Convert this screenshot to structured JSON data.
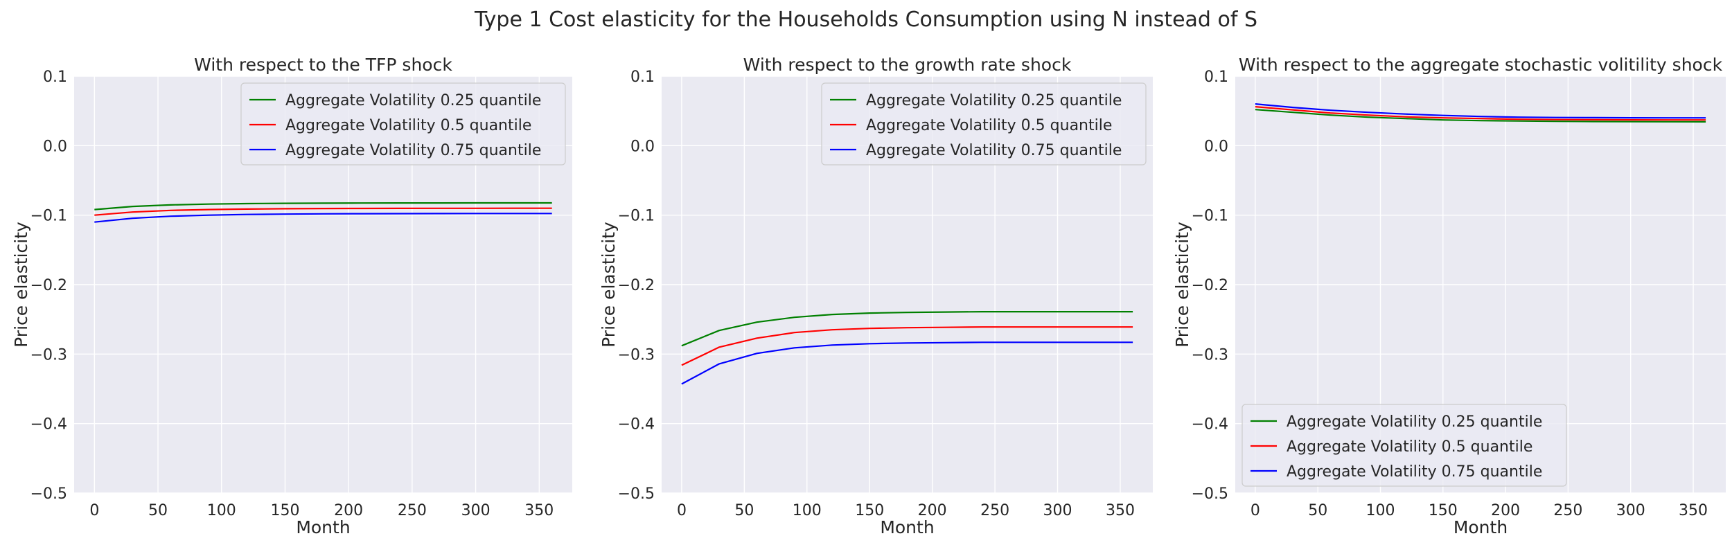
{
  "figure": {
    "title": "Type 1 Cost elasticity for the Households Consumption using N instead of S"
  },
  "colors": {
    "axes_background": "#EAEAF2",
    "grid": "#FFFFFF",
    "text": "#262626",
    "series": [
      "#008000",
      "#FF0000",
      "#0000FF"
    ]
  },
  "chart_data": [
    {
      "type": "line",
      "title": "With respect to the TFP shock",
      "xlabel": "Month",
      "ylabel": "Price elasticity",
      "xlim": [
        -16,
        376
      ],
      "ylim": [
        -0.5,
        0.1
      ],
      "xticks": [
        0,
        50,
        100,
        150,
        200,
        250,
        300,
        350
      ],
      "yticks": [
        -0.5,
        -0.4,
        -0.3,
        -0.2,
        -0.1,
        0.0,
        0.1
      ],
      "grid": true,
      "legend": "upper right",
      "x": [
        0,
        30,
        60,
        90,
        120,
        150,
        180,
        210,
        240,
        270,
        300,
        330,
        360
      ],
      "series": [
        {
          "name": "Aggregate Volatility 0.25 quantile",
          "color": "#008000",
          "values": [
            -0.092,
            -0.0875,
            -0.0853,
            -0.0841,
            -0.0834,
            -0.083,
            -0.0828,
            -0.0826,
            -0.0825,
            -0.0825,
            -0.0824,
            -0.0824,
            -0.0824
          ]
        },
        {
          "name": "Aggregate Volatility 0.5 quantile",
          "color": "#FF0000",
          "values": [
            -0.1,
            -0.0955,
            -0.0932,
            -0.092,
            -0.0913,
            -0.0908,
            -0.0905,
            -0.0904,
            -0.0903,
            -0.0902,
            -0.0902,
            -0.0901,
            -0.0901
          ]
        },
        {
          "name": "Aggregate Volatility 0.75 quantile",
          "color": "#0000FF",
          "values": [
            -0.11,
            -0.1045,
            -0.1015,
            -0.1,
            -0.099,
            -0.0985,
            -0.0981,
            -0.0979,
            -0.0978,
            -0.0977,
            -0.0976,
            -0.0976,
            -0.0976
          ]
        }
      ]
    },
    {
      "type": "line",
      "title": "With respect to the growth rate shock",
      "xlabel": "Month",
      "ylabel": "Price elasticity",
      "xlim": [
        -16,
        376
      ],
      "ylim": [
        -0.5,
        0.1
      ],
      "xticks": [
        0,
        50,
        100,
        150,
        200,
        250,
        300,
        350
      ],
      "yticks": [
        -0.5,
        -0.4,
        -0.3,
        -0.2,
        -0.1,
        0.0,
        0.1
      ],
      "grid": true,
      "legend": "upper right",
      "x": [
        0,
        30,
        60,
        90,
        120,
        150,
        180,
        210,
        240,
        270,
        300,
        330,
        360
      ],
      "series": [
        {
          "name": "Aggregate Volatility 0.25 quantile",
          "color": "#008000",
          "values": [
            -0.288,
            -0.266,
            -0.254,
            -0.247,
            -0.243,
            -0.241,
            -0.24,
            -0.2395,
            -0.239,
            -0.239,
            -0.239,
            -0.239,
            -0.239
          ]
        },
        {
          "name": "Aggregate Volatility 0.5 quantile",
          "color": "#FF0000",
          "values": [
            -0.316,
            -0.29,
            -0.277,
            -0.269,
            -0.265,
            -0.263,
            -0.262,
            -0.2615,
            -0.261,
            -0.261,
            -0.261,
            -0.261,
            -0.261
          ]
        },
        {
          "name": "Aggregate Volatility 0.75 quantile",
          "color": "#0000FF",
          "values": [
            -0.343,
            -0.314,
            -0.299,
            -0.291,
            -0.287,
            -0.285,
            -0.284,
            -0.2835,
            -0.283,
            -0.283,
            -0.283,
            -0.283,
            -0.283
          ]
        }
      ]
    },
    {
      "type": "line",
      "title": "With respect to the aggregate stochastic volitility shock",
      "xlabel": "Month",
      "ylabel": "Price elasticity",
      "xlim": [
        -16,
        376
      ],
      "ylim": [
        -0.5,
        0.1
      ],
      "xticks": [
        0,
        50,
        100,
        150,
        200,
        250,
        300,
        350
      ],
      "yticks": [
        -0.5,
        -0.4,
        -0.3,
        -0.2,
        -0.1,
        0.0,
        0.1
      ],
      "grid": true,
      "legend": "lower left",
      "x": [
        0,
        30,
        60,
        90,
        120,
        150,
        180,
        210,
        240,
        270,
        300,
        330,
        360
      ],
      "series": [
        {
          "name": "Aggregate Volatility 0.25 quantile",
          "color": "#008000",
          "values": [
            0.052,
            0.048,
            0.044,
            0.041,
            0.039,
            0.037,
            0.036,
            0.0355,
            0.035,
            0.0347,
            0.0345,
            0.0344,
            0.0343
          ]
        },
        {
          "name": "Aggregate Volatility 0.5 quantile",
          "color": "#FF0000",
          "values": [
            0.056,
            0.0515,
            0.047,
            0.044,
            0.0415,
            0.04,
            0.039,
            0.038,
            0.0375,
            0.0373,
            0.0371,
            0.037,
            0.037
          ]
        },
        {
          "name": "Aggregate Volatility 0.75 quantile",
          "color": "#0000FF",
          "values": [
            0.06,
            0.055,
            0.051,
            0.048,
            0.0455,
            0.0435,
            0.042,
            0.041,
            0.0405,
            0.0403,
            0.0401,
            0.04,
            0.04
          ]
        }
      ]
    }
  ]
}
